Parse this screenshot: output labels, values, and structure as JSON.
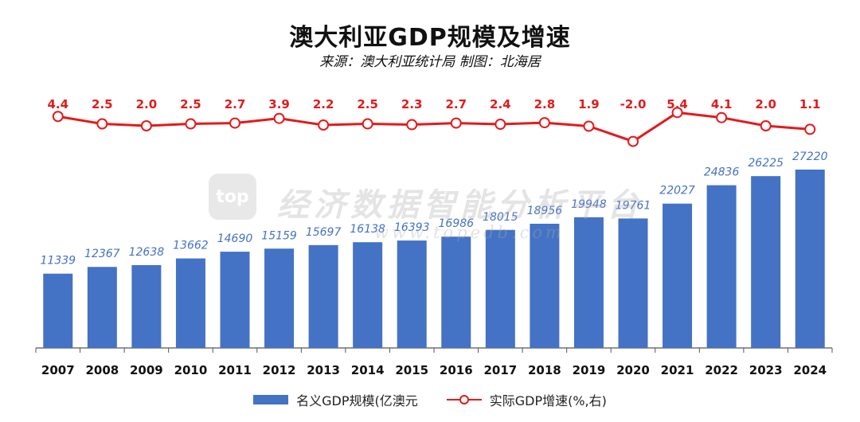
{
  "chart_data": {
    "type": "bar",
    "title": "澳大利亚GDP规模及增速",
    "subtitle": "来源：澳大利亚统计局 制图：北海居",
    "categories": [
      "2007",
      "2008",
      "2009",
      "2010",
      "2011",
      "2012",
      "2013",
      "2014",
      "2015",
      "2016",
      "2017",
      "2018",
      "2019",
      "2020",
      "2021",
      "2022",
      "2023",
      "2024"
    ],
    "series": [
      {
        "name": "名义GDP规模(亿澳元",
        "type": "bar",
        "color": "#4472c4",
        "values": [
          11339,
          12367,
          12638,
          13662,
          14690,
          15159,
          15697,
          16138,
          16393,
          16986,
          18015,
          18956,
          19948,
          19761,
          22027,
          24836,
          26225,
          27220
        ]
      },
      {
        "name": "实际GDP增速(%,右)",
        "type": "line",
        "color": "#e41a1c",
        "values": [
          4.4,
          2.5,
          2.0,
          2.5,
          2.7,
          3.9,
          2.2,
          2.5,
          2.3,
          2.7,
          2.4,
          2.8,
          1.9,
          -2.0,
          5.4,
          4.1,
          2.0,
          1.1
        ]
      }
    ],
    "ylim_left": [
      0,
      27220
    ],
    "grid": false,
    "legend_position": "bottom-center"
  },
  "watermark": {
    "logo": "top",
    "text": "经济数据智能分析平台",
    "url": "www.topedb.com"
  }
}
